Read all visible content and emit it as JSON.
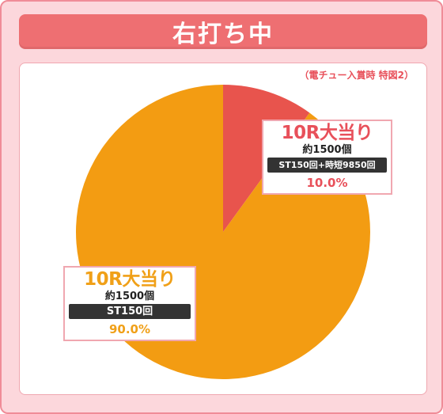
{
  "header": {
    "title": "右打ち中"
  },
  "note": "（電チュー入賞時 特図2）",
  "colors": {
    "accent_red": "#e8505a",
    "accent_orange": "#f39c12",
    "frame_pink": "#fcd7dc"
  },
  "chart_data": {
    "type": "pie",
    "title": "",
    "slices": [
      {
        "label": "10R大当り",
        "detail": "約1500個",
        "mode": "ST150回+時短9850回",
        "value": 10.0,
        "value_label": "10.0%",
        "color": "#e8544d"
      },
      {
        "label": "10R大当り",
        "detail": "約1500個",
        "mode": "ST150回",
        "value": 90.0,
        "value_label": "90.0%",
        "color": "#f39c12"
      }
    ],
    "start_angle": "12 o'clock",
    "direction": "clockwise"
  }
}
